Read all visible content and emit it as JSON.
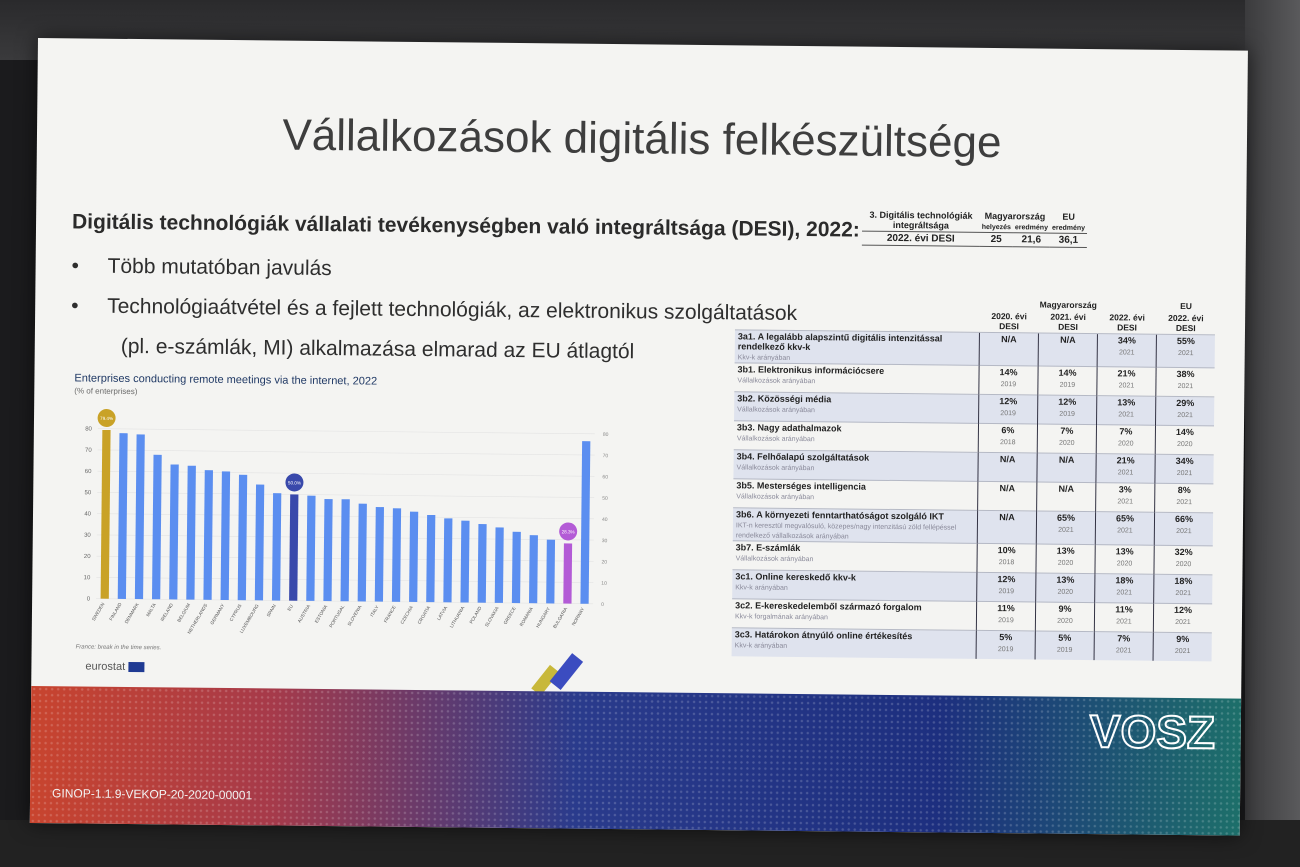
{
  "slide": {
    "title": "Vállalkozások digitális felkészültsége",
    "subtitle": "Digitális technológiák vállalati tevékenységben való integráltsága (DESI), 2022:",
    "bullet_symbol": "•",
    "bullets": [
      "Több mutatóban javulás",
      "Technológiaátvétel és a fejlett technológiák, az elektronikus szolgáltatások"
    ],
    "bullet2_cont": "(pl. e-számlák, MI) alkalmazása elmarad az EU átlagtól",
    "project_code": "GINOP-1.1.9-VEKOP-20-2020-00001",
    "logo_text": "VOSZ"
  },
  "summary_table": {
    "col1": "3. Digitális technológiák integráltsága",
    "col_hu": "Magyarország",
    "col_eu": "EU",
    "sub_rank": "helyezés",
    "sub_result_hu": "eredmény",
    "sub_result_eu": "eredmény",
    "row_label": "2022. évi DESI",
    "rank": "25",
    "hu_value": "21,6",
    "eu_value": "36,1"
  },
  "detail_table": {
    "group_hu": "Magyarország",
    "group_eu": "EU",
    "headers": [
      "2020. évi DESI",
      "2021. évi DESI",
      "2022. évi DESI",
      "2022. évi DESI"
    ],
    "rows": [
      {
        "label": "3a1. A legalább alapszintű digitális intenzitással rendelkező kkv-k",
        "sub": "Kkv-k arányában",
        "v": [
          "N/A",
          "N/A",
          "34%",
          "55%"
        ],
        "y": [
          "",
          "",
          "2021",
          "2021"
        ]
      },
      {
        "label": "3b1. Elektronikus információcsere",
        "sub": "Vállalkozások arányában",
        "v": [
          "14%",
          "14%",
          "21%",
          "38%"
        ],
        "y": [
          "2019",
          "2019",
          "2021",
          "2021"
        ]
      },
      {
        "label": "3b2. Közösségi média",
        "sub": "Vállalkozások arányában",
        "v": [
          "12%",
          "12%",
          "13%",
          "29%"
        ],
        "y": [
          "2019",
          "2019",
          "2021",
          "2021"
        ]
      },
      {
        "label": "3b3. Nagy adathalmazok",
        "sub": "Vállalkozások arányában",
        "v": [
          "6%",
          "7%",
          "7%",
          "14%"
        ],
        "y": [
          "2018",
          "2020",
          "2020",
          "2020"
        ]
      },
      {
        "label": "3b4. Felhőalapú szolgáltatások",
        "sub": "Vállalkozások arányában",
        "v": [
          "N/A",
          "N/A",
          "21%",
          "34%"
        ],
        "y": [
          "",
          "",
          "2021",
          "2021"
        ]
      },
      {
        "label": "3b5. Mesterséges intelligencia",
        "sub": "Vállalkozások arányában",
        "v": [
          "N/A",
          "N/A",
          "3%",
          "8%"
        ],
        "y": [
          "",
          "",
          "2021",
          "2021"
        ]
      },
      {
        "label": "3b6. A környezeti fenntarthatóságot szolgáló IKT",
        "sub": "IKT-n keresztül megvalósuló, közepes/nagy intenzitású zöld fellépéssel rendelkező vállalkozások arányában",
        "v": [
          "N/A",
          "65%",
          "65%",
          "66%"
        ],
        "y": [
          "",
          "2021",
          "2021",
          "2021"
        ]
      },
      {
        "label": "3b7. E-számlák",
        "sub": "Vállalkozások arányában",
        "v": [
          "10%",
          "13%",
          "13%",
          "32%"
        ],
        "y": [
          "2018",
          "2020",
          "2020",
          "2020"
        ]
      },
      {
        "label": "3c1. Online kereskedő kkv-k",
        "sub": "Kkv-k arányában",
        "v": [
          "12%",
          "13%",
          "18%",
          "18%"
        ],
        "y": [
          "2019",
          "2020",
          "2021",
          "2021"
        ]
      },
      {
        "label": "3c2. E-kereskedelemből származó forgalom",
        "sub": "Kkv-k forgalmának arányában",
        "v": [
          "11%",
          "9%",
          "11%",
          "12%"
        ],
        "y": [
          "2019",
          "2020",
          "2021",
          "2021"
        ]
      },
      {
        "label": "3c3. Határokon átnyúló online értékesítés",
        "sub": "Kkv-k arányában",
        "v": [
          "5%",
          "5%",
          "7%",
          "9%"
        ],
        "y": [
          "2019",
          "2019",
          "2021",
          "2021"
        ]
      }
    ]
  },
  "chart_data": {
    "type": "bar",
    "title": "Enterprises conducting remote meetings via the internet, 2022",
    "subtitle": "(% of enterprises)",
    "note": "France: break in the time series.",
    "source": "eurostat",
    "ylim": [
      0,
      80
    ],
    "yticks": [
      0,
      10,
      20,
      30,
      40,
      50,
      60,
      70,
      80
    ],
    "categories": [
      "SWEDEN",
      "FINLAND",
      "DENMARK",
      "MALTA",
      "IRELAND",
      "BELGIUM",
      "NETHERLANDS",
      "GERMANY",
      "CYPRUS",
      "LUXEMBOURG",
      "SPAIN",
      "EU",
      "AUSTRIA",
      "ESTONIA",
      "PORTUGAL",
      "SLOVENIA",
      "ITALY",
      "FRANCE",
      "CZECHIA",
      "CROATIA",
      "LATVIA",
      "LITHUANIA",
      "POLAND",
      "SLOVAKIA",
      "GREECE",
      "ROMANIA",
      "HUNGARY",
      "BULGARIA",
      "NORWAY"
    ],
    "values": [
      79.4,
      78,
      77.5,
      68,
      63.5,
      63,
      61,
      60.5,
      59,
      54.5,
      50.5,
      50.0,
      49.5,
      48,
      48,
      46,
      44.5,
      44,
      42.5,
      41,
      39.5,
      38.5,
      37,
      35.5,
      33.5,
      32,
      30,
      28.3,
      76.5
    ],
    "labels": {
      "SWEDEN": "79.4%",
      "EU": "50.0%",
      "BULGARIA": "28.3%"
    },
    "colors": {
      "default": "#5b8ef0",
      "highlight_top": "#c9a227",
      "eu": "#3949ab",
      "lowest": "#b35bd6"
    }
  }
}
